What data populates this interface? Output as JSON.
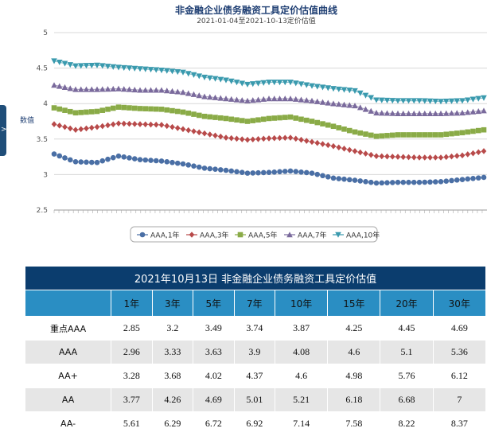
{
  "chart_data": {
    "type": "line",
    "title": "非金融企业债务融资工具定价估值曲线",
    "subtitle": "2021-01-04至2021-10-13定价估值",
    "ylabel": "数值",
    "ylim": [
      2.5,
      5
    ],
    "yticks": [
      2.5,
      3,
      3.5,
      4,
      4.5,
      5
    ],
    "grid": true,
    "legend_position": "bottom",
    "x_index": [
      0,
      5,
      10,
      15,
      20,
      25,
      30,
      35,
      40,
      45,
      50,
      55,
      60,
      65,
      70,
      75,
      80,
      85,
      90,
      95,
      100
    ],
    "series": [
      {
        "name": "AAA,1年",
        "color": "#4a6fa5",
        "marker": "circle",
        "values": [
          3.29,
          3.18,
          3.17,
          3.26,
          3.21,
          3.19,
          3.15,
          3.09,
          3.06,
          3.02,
          3.03,
          3.05,
          3.02,
          2.95,
          2.92,
          2.88,
          2.89,
          2.89,
          2.9,
          2.93,
          2.96
        ]
      },
      {
        "name": "AAA,3年",
        "color": "#b84a4a",
        "marker": "diamond",
        "values": [
          3.71,
          3.63,
          3.67,
          3.72,
          3.71,
          3.7,
          3.64,
          3.58,
          3.52,
          3.49,
          3.51,
          3.52,
          3.46,
          3.4,
          3.33,
          3.26,
          3.25,
          3.24,
          3.24,
          3.27,
          3.33
        ]
      },
      {
        "name": "AAA,5年",
        "color": "#8aab47",
        "marker": "square",
        "values": [
          3.94,
          3.87,
          3.89,
          3.95,
          3.93,
          3.92,
          3.88,
          3.82,
          3.79,
          3.75,
          3.79,
          3.81,
          3.75,
          3.68,
          3.6,
          3.54,
          3.56,
          3.56,
          3.56,
          3.59,
          3.63
        ]
      },
      {
        "name": "AAA,7年",
        "color": "#7a6a9c",
        "marker": "triangle-up",
        "values": [
          4.26,
          4.2,
          4.2,
          4.21,
          4.19,
          4.19,
          4.16,
          4.1,
          4.07,
          4.04,
          4.07,
          4.07,
          4.04,
          4.0,
          3.97,
          3.87,
          3.86,
          3.86,
          3.86,
          3.87,
          3.9
        ]
      },
      {
        "name": "AAA,10年",
        "color": "#3a9aae",
        "marker": "triangle-down",
        "values": [
          4.6,
          4.53,
          4.54,
          4.51,
          4.49,
          4.47,
          4.44,
          4.37,
          4.33,
          4.27,
          4.3,
          4.3,
          4.25,
          4.21,
          4.18,
          4.05,
          4.04,
          4.04,
          4.03,
          4.04,
          4.08
        ]
      }
    ]
  },
  "table": {
    "caption": "2021年10月13日  非金融企业债务融资工具定价估值",
    "headers": [
      "1年",
      "3年",
      "5年",
      "7年",
      "10年",
      "15年",
      "20年",
      "30年"
    ],
    "rows": [
      {
        "label": "重点AAA",
        "values": [
          "2.85",
          "3.2",
          "3.49",
          "3.74",
          "3.87",
          "4.25",
          "4.45",
          "4.69"
        ]
      },
      {
        "label": "AAA",
        "values": [
          "2.96",
          "3.33",
          "3.63",
          "3.9",
          "4.08",
          "4.6",
          "5.1",
          "5.36"
        ]
      },
      {
        "label": "AA+",
        "values": [
          "3.28",
          "3.68",
          "4.02",
          "4.37",
          "4.6",
          "4.98",
          "5.76",
          "6.12"
        ]
      },
      {
        "label": "AA",
        "values": [
          "3.77",
          "4.26",
          "4.69",
          "5.01",
          "5.21",
          "6.18",
          "6.68",
          "7"
        ]
      },
      {
        "label": "AA-",
        "values": [
          "5.61",
          "6.29",
          "6.72",
          "6.92",
          "7.14",
          "7.58",
          "8.22",
          "8.37"
        ]
      }
    ]
  },
  "side_tab": {
    "label": ">"
  }
}
